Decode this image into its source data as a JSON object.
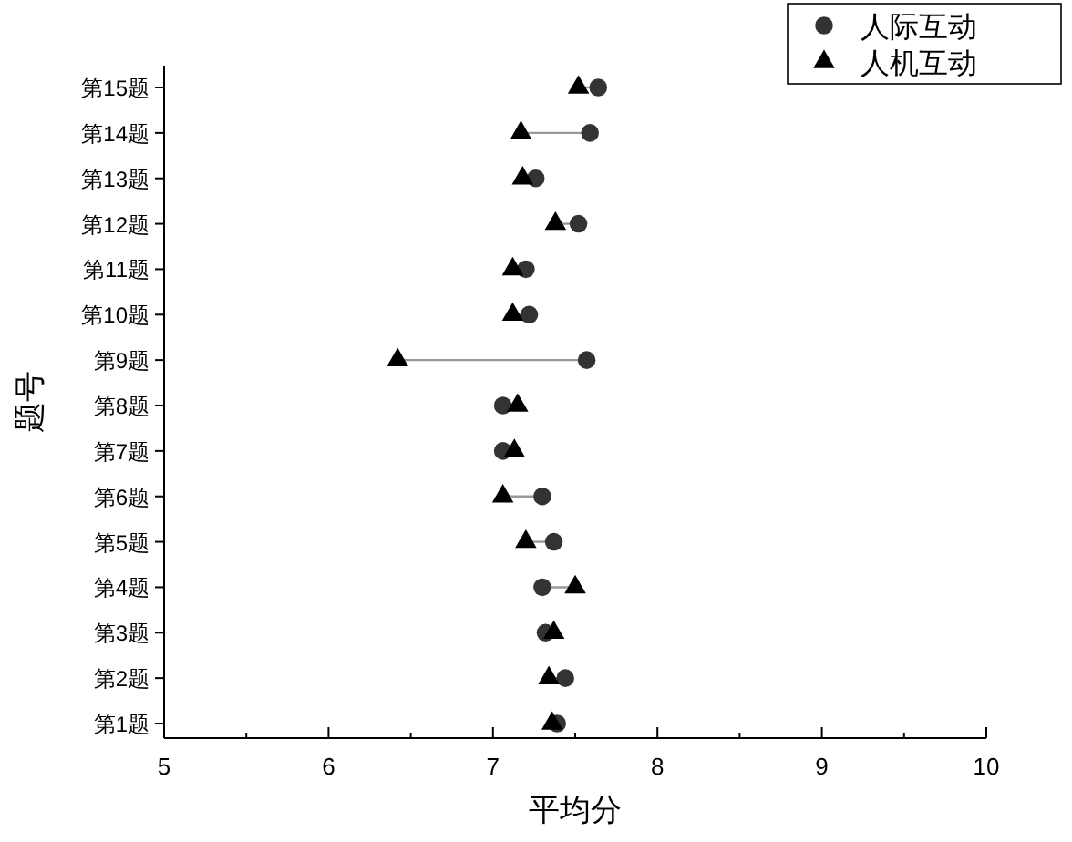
{
  "chart_data": {
    "type": "scatter",
    "orientation": "horizontal",
    "xlabel": "平均分",
    "ylabel": "题号",
    "categories": [
      "第15题",
      "第14题",
      "第13题",
      "第12题",
      "第11题",
      "第10题",
      "第9题",
      "第8题",
      "第7题",
      "第6题",
      "第5题",
      "第4题",
      "第3题",
      "第2题",
      "第1题"
    ],
    "series": [
      {
        "name": "人际互动",
        "color": "#333333",
        "marker": "circle",
        "values": [
          7.64,
          7.59,
          7.26,
          7.52,
          7.2,
          7.22,
          7.57,
          7.06,
          7.06,
          7.3,
          7.37,
          7.3,
          7.32,
          7.44,
          7.39
        ]
      },
      {
        "name": "人机互动",
        "color": "#000000",
        "marker": "triangle",
        "values": [
          7.52,
          7.17,
          7.18,
          7.38,
          7.12,
          7.12,
          6.42,
          7.15,
          7.13,
          7.06,
          7.2,
          7.5,
          7.37,
          7.34,
          7.36
        ]
      }
    ],
    "xlim": [
      5,
      10
    ],
    "xticks": [
      5,
      {
        "value": 5.5,
        "label": null
      },
      6,
      {
        "value": 6.5,
        "label": null
      },
      7,
      {
        "value": 7.5,
        "label": null
      },
      8,
      {
        "value": 8.5,
        "label": null
      },
      9,
      {
        "value": 9.5,
        "label": null
      },
      10
    ],
    "legend": "top right",
    "grid": false
  }
}
